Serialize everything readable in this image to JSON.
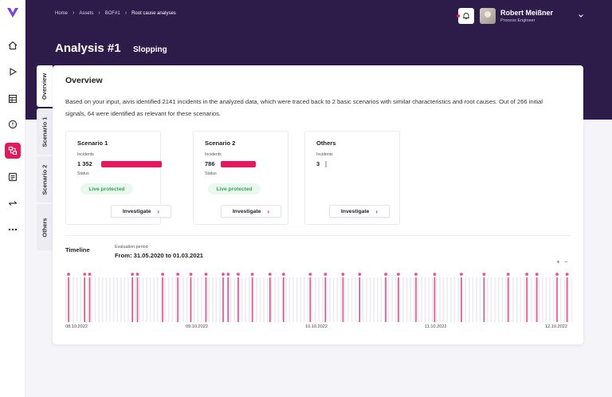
{
  "breadcrumb": [
    "Home",
    "Assets",
    "BOF#1",
    "Root cause analyses"
  ],
  "user": {
    "name": "Robert Meißner",
    "role": "Process Engineer"
  },
  "page": {
    "title": "Analysis #1",
    "subtitle": "Slopping"
  },
  "tabs": [
    "Overview",
    "Scenario 1",
    "Scenario 2",
    "Others"
  ],
  "overview": {
    "title": "Overview",
    "text": "Based on your input, aivis identified 2141 incidents in the analyzed data, which were traced back to 2 basic scenarios with similar characteristics and root causes. Out of 266 initial signals, 64 were identified as relevant for these scenarios."
  },
  "scenarios": [
    {
      "title": "Scenario 1",
      "incidents_label": "Incidents",
      "incidents": "1 352",
      "incidents_value": 1352,
      "status_label": "Status",
      "status": "Live protected",
      "button": "Investigate"
    },
    {
      "title": "Scenario 2",
      "incidents_label": "Incidents",
      "incidents": "786",
      "incidents_value": 786,
      "status_label": "Status",
      "status": "Live protected",
      "button": "Investigate"
    },
    {
      "title": "Others",
      "incidents_label": "Incidents",
      "incidents": "3",
      "incidents_value": 3,
      "button": "Investigate"
    }
  ],
  "timeline": {
    "title": "Timeline",
    "period_label": "Evaluation period",
    "period": "From: 31.05.2020 to 01.03.2021",
    "zoom_in": "+",
    "zoom_out": "−",
    "dates": [
      "08.10.2022",
      "09.10.2022",
      "10.10.2022",
      "11.10.2022",
      "12.10.2022"
    ],
    "incident_positions": [
      0.005,
      0.037,
      0.047,
      0.132,
      0.142,
      0.192,
      0.222,
      0.248,
      0.278,
      0.312,
      0.322,
      0.342,
      0.37,
      0.405,
      0.432,
      0.485,
      0.515,
      0.55,
      0.583,
      0.635,
      0.66,
      0.695,
      0.732,
      0.785,
      0.83,
      0.878,
      0.915,
      0.935,
      0.975,
      0.995
    ]
  },
  "colors": {
    "accent": "#e6175c",
    "header": "#2d1b4a",
    "success": "#2eaa55"
  },
  "rail_icons": [
    "home-icon",
    "play-icon",
    "table-icon",
    "alert-icon",
    "analysis-icon",
    "notes-icon",
    "compare-icon",
    "more-icon"
  ]
}
